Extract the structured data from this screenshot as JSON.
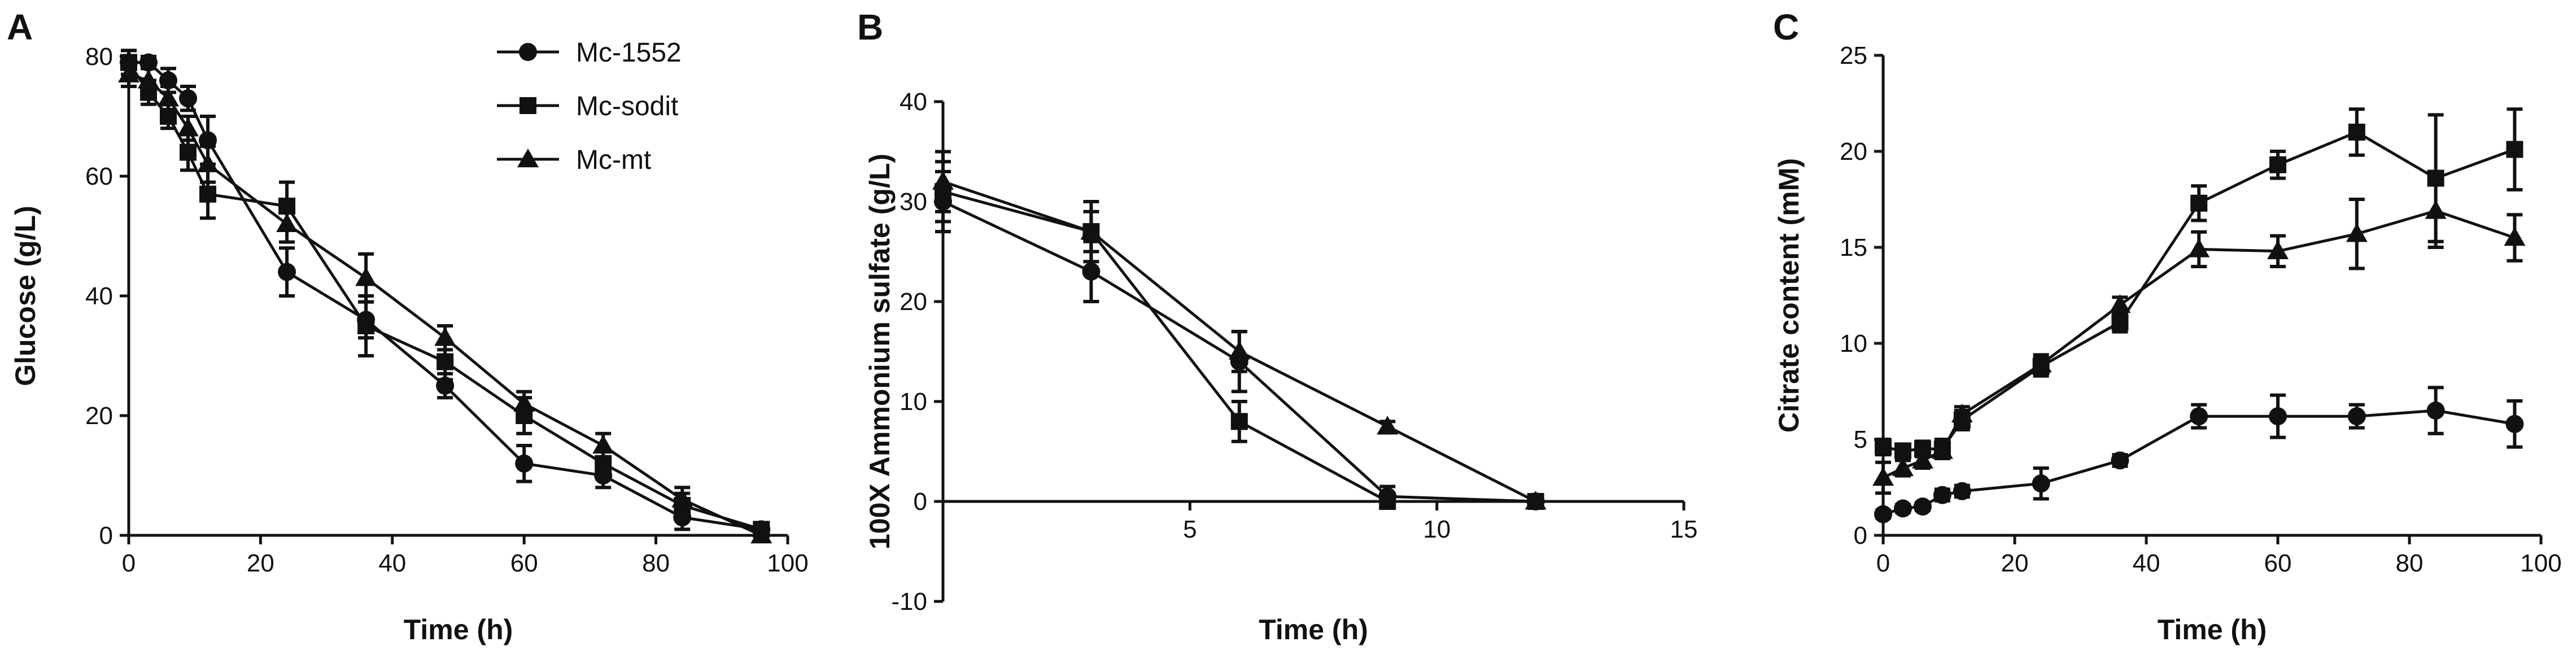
{
  "colors": {
    "ink": "#111111",
    "background": "#ffffff"
  },
  "legend": {
    "entries": [
      {
        "name": "Mc-1552",
        "marker": "circle"
      },
      {
        "name": "Mc-sodit",
        "marker": "square"
      },
      {
        "name": "Mc-mt",
        "marker": "triangle"
      }
    ]
  },
  "chart_data": [
    {
      "panel": "A",
      "type": "line",
      "xlabel": "Time (h)",
      "ylabel": "Glucose (g/L)",
      "xlim": [
        0,
        100
      ],
      "ylim": [
        0,
        80
      ],
      "xticks": [
        0,
        20,
        40,
        60,
        80,
        100
      ],
      "yticks": [
        0,
        20,
        40,
        60,
        80
      ],
      "series": [
        {
          "name": "Mc-1552",
          "marker": "circle",
          "x": [
            0,
            3,
            6,
            9,
            12,
            24,
            36,
            48,
            60,
            72,
            84,
            96
          ],
          "y": [
            79,
            79,
            76,
            73,
            66,
            44,
            36,
            25,
            12,
            10,
            3,
            1
          ],
          "err": [
            2,
            1,
            2,
            2,
            4,
            4,
            3,
            2,
            3,
            2,
            2,
            1
          ]
        },
        {
          "name": "Mc-sodit",
          "marker": "square",
          "x": [
            0,
            3,
            6,
            9,
            12,
            24,
            36,
            48,
            60,
            72,
            84,
            96
          ],
          "y": [
            79,
            74,
            70,
            64,
            57,
            55,
            35,
            29,
            20,
            12,
            5,
            1
          ],
          "err": [
            2,
            2,
            2,
            3,
            4,
            4,
            5,
            3,
            3,
            2,
            2,
            1
          ]
        },
        {
          "name": "Mc-mt",
          "marker": "triangle",
          "x": [
            0,
            3,
            6,
            9,
            12,
            24,
            36,
            48,
            60,
            72,
            84,
            96
          ],
          "y": [
            77,
            76,
            73,
            68,
            62,
            52,
            43,
            33,
            22,
            15,
            6,
            0
          ],
          "err": [
            2,
            2,
            2,
            2,
            3,
            3,
            4,
            2,
            2,
            2,
            2,
            1
          ]
        }
      ]
    },
    {
      "panel": "B",
      "type": "line",
      "xlabel": "Time (h)",
      "ylabel": "100X Ammonium sulfate (g/L)",
      "xlim": [
        0,
        15
      ],
      "ylim": [
        -10,
        40
      ],
      "xticks": [
        5,
        10,
        15
      ],
      "yticks": [
        -10,
        0,
        10,
        20,
        30,
        40
      ],
      "series": [
        {
          "name": "Mc-1552",
          "marker": "circle",
          "x": [
            0,
            3,
            6,
            9,
            12
          ],
          "y": [
            30,
            23,
            14,
            0.5,
            0
          ],
          "err": [
            3,
            3,
            3,
            1,
            0.5
          ]
        },
        {
          "name": "Mc-sodit",
          "marker": "square",
          "x": [
            0,
            3,
            6,
            9,
            12
          ],
          "y": [
            31,
            27,
            8,
            0,
            0
          ],
          "err": [
            3,
            3,
            2,
            0.5,
            0.5
          ]
        },
        {
          "name": "Mc-mt",
          "marker": "triangle",
          "x": [
            0,
            3,
            6,
            9,
            12
          ],
          "y": [
            32,
            27,
            15,
            7.5,
            0
          ],
          "err": [
            3,
            2,
            2,
            0.5,
            0.5
          ]
        }
      ]
    },
    {
      "panel": "C",
      "type": "line",
      "xlabel": "Time (h)",
      "ylabel": "Citrate content (mM)",
      "xlim": [
        0,
        100
      ],
      "ylim": [
        0,
        25
      ],
      "xticks": [
        0,
        20,
        40,
        60,
        80,
        100
      ],
      "yticks": [
        0,
        5,
        10,
        15,
        20,
        25
      ],
      "series": [
        {
          "name": "Mc-1552",
          "marker": "circle",
          "x": [
            0,
            3,
            6,
            9,
            12,
            24,
            36,
            48,
            60,
            72,
            84,
            96
          ],
          "y": [
            1.1,
            1.4,
            1.5,
            2.1,
            2.3,
            2.7,
            3.9,
            6.2,
            6.2,
            6.2,
            6.5,
            5.8
          ],
          "err": [
            0.2,
            0.2,
            0.2,
            0.3,
            0.3,
            0.8,
            0.3,
            0.6,
            1.1,
            0.6,
            1.2,
            1.2
          ]
        },
        {
          "name": "Mc-sodit",
          "marker": "square",
          "x": [
            0,
            3,
            6,
            9,
            12,
            24,
            36,
            48,
            60,
            72,
            84,
            96
          ],
          "y": [
            4.6,
            4.4,
            4.5,
            4.5,
            6.0,
            8.8,
            11.1,
            17.3,
            19.3,
            21.0,
            18.6,
            20.1
          ],
          "err": [
            0.4,
            0.3,
            0.4,
            0.5,
            0.5,
            0.5,
            0.5,
            0.9,
            0.7,
            1.2,
            3.3,
            2.1
          ]
        },
        {
          "name": "Mc-mt",
          "marker": "triangle",
          "x": [
            0,
            3,
            6,
            9,
            12,
            24,
            36,
            48,
            60,
            72,
            84,
            96
          ],
          "y": [
            3.0,
            3.5,
            3.9,
            4.4,
            6.3,
            8.9,
            12.0,
            14.9,
            14.8,
            15.7,
            16.9,
            15.5
          ],
          "err": [
            0.8,
            0.4,
            0.4,
            0.4,
            0.4,
            0.5,
            0.4,
            0.9,
            0.8,
            1.8,
            1.9,
            1.2
          ]
        }
      ]
    }
  ]
}
